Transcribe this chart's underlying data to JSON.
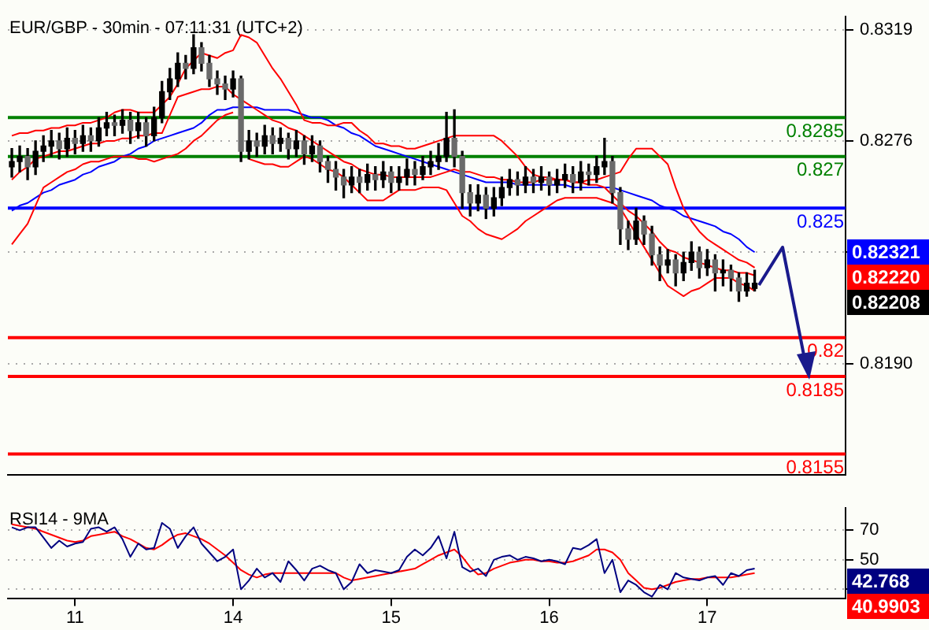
{
  "chart_data": [
    {
      "type": "candlestick",
      "title": "EUR/GBP - 30min - 07:11:31 (UTC+2)",
      "categories": [
        null,
        null,
        null,
        null,
        null,
        null,
        null,
        null,
        "11",
        null,
        null,
        null,
        null,
        null,
        null,
        null,
        null,
        null,
        null,
        null,
        null,
        null,
        null,
        null,
        null,
        null,
        null,
        null,
        "14",
        null,
        null,
        null,
        null,
        null,
        null,
        null,
        null,
        null,
        null,
        null,
        null,
        null,
        null,
        null,
        null,
        null,
        null,
        null,
        "15",
        null,
        null,
        null,
        null,
        null,
        null,
        null,
        null,
        null,
        null,
        null,
        null,
        null,
        null,
        null,
        null,
        null,
        null,
        null,
        "16",
        null,
        null,
        null,
        null,
        null,
        null,
        null,
        null,
        null,
        null,
        null,
        null,
        null,
        null,
        null,
        null,
        null,
        null,
        null,
        "17",
        null,
        null,
        null,
        null,
        null,
        null,
        null,
        null,
        null,
        null,
        null,
        null,
        null,
        null,
        null,
        null,
        null
      ],
      "ohlc": [
        [
          0.8266,
          0.8273,
          0.8262,
          0.8268
        ],
        [
          0.8268,
          0.8274,
          0.8264,
          0.827
        ],
        [
          0.827,
          0.8273,
          0.8261,
          0.8266
        ],
        [
          0.8266,
          0.8276,
          0.8263,
          0.8272
        ],
        [
          0.8272,
          0.8278,
          0.8268,
          0.8274
        ],
        [
          0.8274,
          0.828,
          0.827,
          0.8276
        ],
        [
          0.8276,
          0.8279,
          0.8269,
          0.8273
        ],
        [
          0.8273,
          0.8281,
          0.827,
          0.8277
        ],
        [
          0.8277,
          0.828,
          0.8271,
          0.8275
        ],
        [
          0.8275,
          0.8282,
          0.8272,
          0.8278
        ],
        [
          0.8278,
          0.8281,
          0.8272,
          0.8276
        ],
        [
          0.8276,
          0.8285,
          0.8274,
          0.8281
        ],
        [
          0.8281,
          0.8287,
          0.8278,
          0.8283
        ],
        [
          0.8283,
          0.8286,
          0.8278,
          0.8282
        ],
        [
          0.8282,
          0.8288,
          0.8279,
          0.8284
        ],
        [
          0.8284,
          0.8287,
          0.8275,
          0.828
        ],
        [
          0.828,
          0.8287,
          0.8277,
          0.8283
        ],
        [
          0.8283,
          0.8285,
          0.8274,
          0.8278
        ],
        [
          0.8278,
          0.8289,
          0.8276,
          0.8285
        ],
        [
          0.8285,
          0.8299,
          0.8283,
          0.8295
        ],
        [
          0.8295,
          0.8304,
          0.8292,
          0.83
        ],
        [
          0.83,
          0.831,
          0.8297,
          0.8306
        ],
        [
          0.8306,
          0.8309,
          0.83,
          0.8304
        ],
        [
          0.8304,
          0.8317,
          0.8302,
          0.8312
        ],
        [
          0.8312,
          0.8314,
          0.8303,
          0.8306
        ],
        [
          0.8306,
          0.8309,
          0.8297,
          0.83
        ],
        [
          0.83,
          0.8303,
          0.8294,
          0.8298
        ],
        [
          0.8298,
          0.8301,
          0.8292,
          0.8296
        ],
        [
          0.8296,
          0.8303,
          0.8293,
          0.83
        ],
        [
          0.83,
          0.8301,
          0.8268,
          0.8272
        ],
        [
          0.8272,
          0.828,
          0.8269,
          0.8276
        ],
        [
          0.8276,
          0.8279,
          0.827,
          0.8274
        ],
        [
          0.8274,
          0.8282,
          0.8271,
          0.8278
        ],
        [
          0.8278,
          0.8281,
          0.8271,
          0.8275
        ],
        [
          0.8275,
          0.8281,
          0.8272,
          0.8277
        ],
        [
          0.8277,
          0.8279,
          0.8269,
          0.8273
        ],
        [
          0.8273,
          0.828,
          0.827,
          0.8276
        ],
        [
          0.8276,
          0.8278,
          0.8267,
          0.8271
        ],
        [
          0.8271,
          0.8278,
          0.8268,
          0.8274
        ],
        [
          0.8274,
          0.8276,
          0.8264,
          0.8268
        ],
        [
          0.8268,
          0.827,
          0.826,
          0.8265
        ],
        [
          0.8265,
          0.8268,
          0.8257,
          0.8262
        ],
        [
          0.8262,
          0.8265,
          0.8254,
          0.8259
        ],
        [
          0.8259,
          0.8266,
          0.8256,
          0.8262
        ],
        [
          0.8262,
          0.8265,
          0.8256,
          0.826
        ],
        [
          0.826,
          0.8267,
          0.8257,
          0.8263
        ],
        [
          0.8263,
          0.8266,
          0.8257,
          0.8261
        ],
        [
          0.8261,
          0.8268,
          0.8258,
          0.8264
        ],
        [
          0.8264,
          0.8266,
          0.8256,
          0.826
        ],
        [
          0.826,
          0.8266,
          0.8257,
          0.8262
        ],
        [
          0.8262,
          0.8269,
          0.8259,
          0.8265
        ],
        [
          0.8265,
          0.8268,
          0.8259,
          0.8263
        ],
        [
          0.8263,
          0.827,
          0.8261,
          0.8266
        ],
        [
          0.8266,
          0.8272,
          0.8263,
          0.8268
        ],
        [
          0.8268,
          0.8275,
          0.8265,
          0.827
        ],
        [
          0.827,
          0.8287,
          0.8268,
          0.8277
        ],
        [
          0.8277,
          0.8288,
          0.8266,
          0.827
        ],
        [
          0.827,
          0.8272,
          0.825,
          0.8256
        ],
        [
          0.8256,
          0.8259,
          0.8247,
          0.8252
        ],
        [
          0.8252,
          0.8259,
          0.8249,
          0.8255
        ],
        [
          0.8255,
          0.8258,
          0.8246,
          0.825
        ],
        [
          0.825,
          0.8258,
          0.8247,
          0.8254
        ],
        [
          0.8254,
          0.8262,
          0.8251,
          0.8258
        ],
        [
          0.8258,
          0.8265,
          0.8255,
          0.8261
        ],
        [
          0.8261,
          0.8264,
          0.8255,
          0.8259
        ],
        [
          0.8259,
          0.8266,
          0.8256,
          0.8262
        ],
        [
          0.8262,
          0.8265,
          0.8256,
          0.826
        ],
        [
          0.826,
          0.8266,
          0.8257,
          0.8262
        ],
        [
          0.8262,
          0.8264,
          0.8255,
          0.8259
        ],
        [
          0.8259,
          0.8265,
          0.8256,
          0.8261
        ],
        [
          0.8261,
          0.8267,
          0.8258,
          0.8263
        ],
        [
          0.8263,
          0.8266,
          0.8256,
          0.826
        ],
        [
          0.826,
          0.8268,
          0.8257,
          0.8264
        ],
        [
          0.8264,
          0.8267,
          0.8259,
          0.8263
        ],
        [
          0.8263,
          0.827,
          0.826,
          0.8266
        ],
        [
          0.8266,
          0.8277,
          0.8263,
          0.8268
        ],
        [
          0.8268,
          0.827,
          0.8252,
          0.8256
        ],
        [
          0.8256,
          0.8258,
          0.8236,
          0.8242
        ],
        [
          0.8242,
          0.8245,
          0.8234,
          0.8238
        ],
        [
          0.8238,
          0.825,
          0.8236,
          0.8245
        ],
        [
          0.8245,
          0.8247,
          0.8236,
          0.824
        ],
        [
          0.824,
          0.8243,
          0.8228,
          0.8232
        ],
        [
          0.8232,
          0.8235,
          0.8222,
          0.8228
        ],
        [
          0.8228,
          0.8234,
          0.8225,
          0.823
        ],
        [
          0.823,
          0.8232,
          0.822,
          0.8225
        ],
        [
          0.8225,
          0.8233,
          0.8222,
          0.8229
        ],
        [
          0.8229,
          0.8237,
          0.8226,
          0.8233
        ],
        [
          0.8233,
          0.8235,
          0.8223,
          0.8227
        ],
        [
          0.8227,
          0.8234,
          0.8224,
          0.823
        ],
        [
          0.823,
          0.8232,
          0.8218,
          0.8225
        ],
        [
          0.8225,
          0.823,
          0.822,
          0.8226
        ],
        [
          0.8226,
          0.8228,
          0.8218,
          0.8223
        ],
        [
          0.8223,
          0.8225,
          0.8214,
          0.8218
        ],
        [
          0.8218,
          0.8225,
          0.8216,
          0.8221
        ],
        [
          0.8219,
          0.8226,
          0.8218,
          0.8221
        ],
        null,
        null,
        null,
        null,
        null,
        null,
        null,
        null,
        null,
        null,
        null
      ],
      "series": [
        {
          "type": "line",
          "color": "#ff0000",
          "values": [
            0.8278,
            0.8279,
            0.8279,
            0.828,
            0.828,
            0.8281,
            0.8281,
            0.8282,
            0.8282,
            0.8283,
            0.8283,
            0.8284,
            0.8285,
            0.8287,
            0.8288,
            0.8288,
            0.8287,
            0.8287,
            0.8287,
            0.829,
            0.8293,
            0.8298,
            0.8304,
            0.8307,
            0.831,
            0.8309,
            0.8308,
            0.831,
            0.8311,
            0.8317,
            0.8316,
            0.8314,
            0.8309,
            0.8304,
            0.83,
            0.8295,
            0.829,
            0.8284,
            0.8283,
            0.8283,
            0.8282,
            0.8282,
            0.8283,
            0.8283,
            0.828,
            0.8278,
            0.8275,
            0.8275,
            0.8274,
            0.8274,
            0.8273,
            0.8273,
            0.8274,
            0.8275,
            0.8276,
            0.8277,
            0.8278,
            0.8278,
            0.8278,
            0.8278,
            0.8278,
            0.8278,
            0.8276,
            0.8273,
            0.827,
            0.8266,
            0.8263,
            0.8262,
            0.8262,
            0.8261,
            0.8261,
            0.826,
            0.826,
            0.8261,
            0.8261,
            0.8262,
            0.8263,
            0.8264,
            0.8269,
            0.8273,
            0.8273,
            0.8273,
            0.827,
            0.8267,
            0.8258,
            0.825,
            0.8245,
            0.8241,
            0.8238,
            0.8236,
            0.8234,
            0.8232,
            0.823,
            0.8229,
            0.8227,
            null,
            null,
            null,
            null,
            null,
            null,
            null,
            null,
            null,
            null,
            null
          ]
        },
        {
          "type": "line",
          "color": "#ff0000",
          "values": [
            0.8261,
            0.8264,
            0.8266,
            0.8269,
            0.827,
            0.8271,
            0.8272,
            0.8272,
            0.8273,
            0.8274,
            0.8275,
            0.8275,
            0.8276,
            0.8276,
            0.8277,
            0.8277,
            0.8278,
            0.8278,
            0.8279,
            0.8279,
            0.8286,
            0.8293,
            0.8294,
            0.8295,
            0.8296,
            0.8296,
            0.8297,
            0.8297,
            0.8294,
            0.8292,
            0.829,
            0.8288,
            0.8286,
            0.8284,
            0.8283,
            0.8281,
            0.828,
            0.8278,
            0.8276,
            0.8274,
            0.8272,
            0.827,
            0.8268,
            0.8267,
            0.8265,
            0.8264,
            0.8263,
            0.8263,
            0.8262,
            0.8262,
            0.8262,
            0.8262,
            0.8262,
            0.8262,
            0.8263,
            0.8264,
            0.8265,
            0.8264,
            0.8264,
            0.8263,
            0.8262,
            0.8262,
            0.8261,
            0.8261,
            0.826,
            0.826,
            0.826,
            0.8261,
            0.8261,
            0.8261,
            0.8261,
            0.826,
            0.826,
            0.8259,
            0.8259,
            0.8258,
            0.8255,
            0.8252,
            0.8249,
            0.8247,
            0.8244,
            0.8241,
            0.8237,
            0.8234,
            0.8233,
            0.8231,
            0.823,
            0.8229,
            0.8228,
            0.8227,
            0.8226,
            0.8226,
            0.8225,
            0.8225,
            0.8224,
            null,
            null,
            null,
            null,
            null,
            null,
            null,
            null,
            null,
            null,
            null
          ]
        },
        {
          "type": "line",
          "color": "#ff0000",
          "values": [
            0.8236,
            0.824,
            0.8244,
            0.8251,
            0.8258,
            0.826,
            0.8262,
            0.8264,
            0.8265,
            0.8267,
            0.8268,
            0.8268,
            0.8269,
            0.827,
            0.827,
            0.827,
            0.8269,
            0.8269,
            0.8268,
            0.8269,
            0.827,
            0.8271,
            0.8273,
            0.8276,
            0.8278,
            0.8281,
            0.8284,
            0.8286,
            0.8287,
            null,
            0.8269,
            0.8268,
            0.8267,
            0.8267,
            0.8266,
            0.8266,
            0.8268,
            0.827,
            0.8269,
            0.8267,
            0.8265,
            0.8264,
            0.8262,
            0.8259,
            0.8256,
            0.8253,
            0.8253,
            0.8253,
            0.8255,
            0.8257,
            0.8257,
            0.8257,
            0.8258,
            0.8258,
            0.8258,
            0.8257,
            0.8252,
            0.8247,
            0.8245,
            0.8242,
            0.824,
            0.8239,
            0.8238,
            0.824,
            0.8242,
            0.8245,
            0.8247,
            0.8249,
            0.8251,
            0.8253,
            0.8254,
            0.8254,
            0.8254,
            0.8254,
            0.8254,
            0.8253,
            0.8252,
            0.825,
            0.8245,
            0.824,
            0.8235,
            0.823,
            0.8225,
            0.822,
            0.8218,
            0.8216,
            0.8218,
            0.8219,
            0.8221,
            0.8223,
            0.8223,
            0.8223,
            0.8221,
            0.822,
            0.8218,
            null,
            null,
            null,
            null,
            null,
            null,
            null,
            null,
            null,
            null,
            null
          ]
        },
        {
          "type": "line",
          "color": "#0000ff",
          "values": [
            0.8249,
            0.8251,
            0.8252,
            0.8254,
            0.8256,
            0.8257,
            0.8259,
            0.826,
            0.8261,
            0.8263,
            0.8264,
            0.8266,
            0.8267,
            0.8268,
            0.827,
            0.8271,
            0.8273,
            0.8274,
            0.8276,
            0.8277,
            0.8278,
            0.8279,
            0.828,
            0.8281,
            0.8283,
            0.8286,
            0.8288,
            0.8288,
            0.8289,
            0.8289,
            0.8289,
            0.8289,
            0.8288,
            0.8288,
            0.8288,
            0.8288,
            0.8287,
            0.8286,
            0.8285,
            0.8285,
            0.8284,
            0.8282,
            0.8281,
            0.8279,
            0.8278,
            0.8276,
            0.8274,
            0.8273,
            0.8272,
            0.8271,
            0.827,
            0.8269,
            0.8268,
            0.8267,
            0.8266,
            0.8265,
            0.8264,
            0.8263,
            0.8262,
            0.8261,
            0.826,
            0.826,
            0.826,
            0.826,
            0.8259,
            0.8259,
            0.8259,
            0.8259,
            0.8259,
            0.8259,
            0.8259,
            0.8258,
            0.8258,
            0.8258,
            0.8258,
            0.8258,
            0.8258,
            0.8257,
            0.8256,
            0.8255,
            0.8254,
            0.8253,
            0.8251,
            0.825,
            0.8249,
            0.8247,
            0.8246,
            0.8245,
            0.8244,
            0.8243,
            0.8241,
            0.824,
            0.8238,
            0.8235,
            0.8233,
            null,
            null,
            null,
            null,
            null,
            null,
            null,
            null,
            null,
            null,
            null
          ]
        }
      ],
      "ylim": [
        0.8147,
        0.8324
      ],
      "yticks": [
        0.8319,
        0.8276,
        {
          "value": 0.8233,
          "label": null
        },
        {
          "value": 0.819,
          "label": "0.8190"
        }
      ],
      "tick_labels": "y",
      "grid": "y",
      "legend": false,
      "marker": "none",
      "line_style": "solid",
      "ref_lines": [
        {
          "axis": "y",
          "value": 0.8285,
          "label": "0.8285",
          "color": "#008000"
        },
        {
          "axis": "y",
          "value": 0.827,
          "label": "0.827",
          "color": "#008000"
        },
        {
          "axis": "y",
          "value": 0.825,
          "label": "0.825",
          "color": "#0000ff"
        },
        {
          "axis": "y",
          "value": 0.82,
          "label": "0.82",
          "color": "#ff0000"
        },
        {
          "axis": "y",
          "value": 0.8185,
          "label": "0.8185",
          "color": "#ff0000"
        },
        {
          "axis": "y",
          "value": 0.8155,
          "label": "0.8155",
          "color": "#ff0000"
        }
      ],
      "annotations": [
        "0.82321",
        "0.82220",
        "0.82208"
      ]
    },
    {
      "type": "line",
      "title": "RSI14 - 9MA",
      "categories": [
        null,
        null,
        null,
        null,
        null,
        null,
        null,
        null,
        "11",
        null,
        null,
        null,
        null,
        null,
        null,
        null,
        null,
        null,
        null,
        null,
        null,
        null,
        null,
        null,
        null,
        null,
        null,
        null,
        "14",
        null,
        null,
        null,
        null,
        null,
        null,
        null,
        null,
        null,
        null,
        null,
        null,
        null,
        null,
        null,
        null,
        null,
        null,
        null,
        "15",
        null,
        null,
        null,
        null,
        null,
        null,
        null,
        null,
        null,
        null,
        null,
        null,
        null,
        null,
        null,
        null,
        null,
        null,
        null,
        "16",
        null,
        null,
        null,
        null,
        null,
        null,
        null,
        null,
        null,
        null,
        null,
        null,
        null,
        null,
        null,
        null,
        null,
        null,
        null,
        "17",
        null,
        null,
        null,
        null,
        null,
        null,
        null,
        null,
        null,
        null,
        null,
        null,
        null,
        null,
        null,
        null,
        null
      ],
      "series": [
        {
          "color": "#000080",
          "values": [
            72,
            70,
            72,
            72,
            65,
            58,
            63,
            59,
            61,
            62,
            71,
            72,
            69,
            72,
            64,
            52,
            61,
            57,
            58,
            75,
            71,
            58,
            66,
            72,
            61,
            55,
            49,
            52,
            57,
            30,
            36,
            44,
            38,
            41,
            35,
            49,
            43,
            36,
            44,
            46,
            43,
            41,
            30,
            35,
            47,
            41,
            43,
            42,
            41,
            43,
            52,
            57,
            53,
            58,
            66,
            51,
            69,
            45,
            42,
            44,
            39,
            50,
            52,
            53,
            50,
            52,
            51,
            49,
            50,
            49,
            47,
            58,
            57,
            60,
            64,
            41,
            50,
            28,
            36,
            33,
            28,
            25,
            33,
            30,
            41,
            38,
            37,
            36,
            38,
            39,
            33,
            41,
            39,
            43,
            44,
            null,
            null,
            null,
            null,
            null,
            null,
            null,
            null,
            null,
            null,
            null
          ]
        },
        {
          "color": "#ff0000",
          "values": [
            74,
            73,
            72,
            71,
            69,
            67,
            65,
            63,
            62,
            63,
            66,
            67,
            68,
            69,
            66,
            64,
            61,
            58,
            57,
            60,
            64,
            67,
            68,
            66,
            64,
            61,
            57,
            53,
            48,
            43,
            40,
            38,
            40,
            41,
            41,
            41,
            41,
            41,
            41,
            41,
            41,
            41,
            38,
            36,
            37,
            38,
            39,
            40,
            41,
            42,
            43,
            44,
            47,
            50,
            53,
            55,
            57,
            52,
            45,
            40,
            41,
            44,
            46,
            48,
            49,
            50,
            50,
            49,
            49,
            48,
            48,
            49,
            51,
            53,
            57,
            57,
            55,
            50,
            41,
            36,
            31,
            30,
            31,
            33,
            35,
            36,
            37,
            37,
            38,
            38,
            38,
            38,
            39,
            40,
            41,
            null,
            null,
            null,
            null,
            null,
            null,
            null,
            null,
            null,
            null,
            null
          ]
        }
      ],
      "ylim": [
        24,
        85
      ],
      "yticks": [
        70,
        50,
        {
          "value": 30,
          "label": null
        }
      ],
      "grid": "y",
      "legend": false,
      "marker": "none",
      "line_style": "solid",
      "annotations": [
        "42.768",
        "40.9903"
      ]
    }
  ]
}
